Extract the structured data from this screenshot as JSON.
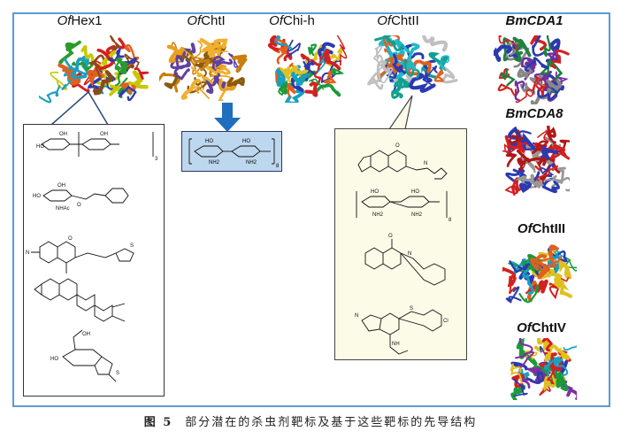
{
  "proteins": [
    {
      "prefix": "Of",
      "name": "Hex1"
    },
    {
      "prefix": "Of",
      "name": "ChtI"
    },
    {
      "prefix": "Of",
      "name": "Chi-h"
    },
    {
      "prefix": "Of",
      "name": "ChtII"
    },
    {
      "prefix": "",
      "name": "BmCDA1"
    },
    {
      "prefix": "",
      "name": "BmCDA8"
    },
    {
      "prefix": "Of",
      "name": "ChtIII"
    },
    {
      "prefix": "Of",
      "name": "ChtIV"
    }
  ],
  "chem_labels": {
    "oh": "OH",
    "ho": "HO",
    "nh2": "NH2",
    "nhac": "NHAc",
    "s": "S",
    "cl": "Cl",
    "n": "N",
    "o": "O",
    "nh": "NH",
    "rep3": "3",
    "rep8": "8"
  },
  "colors": {
    "frame": "#5b9bd5",
    "arrow": "#1f6fbf",
    "blue_box": "#bdd7ee",
    "right_box": "#fcfbe8"
  },
  "caption": {
    "label": "图 5",
    "text": "部分潜在的杀虫剂靶标及基于这些靶标的先导结构"
  }
}
